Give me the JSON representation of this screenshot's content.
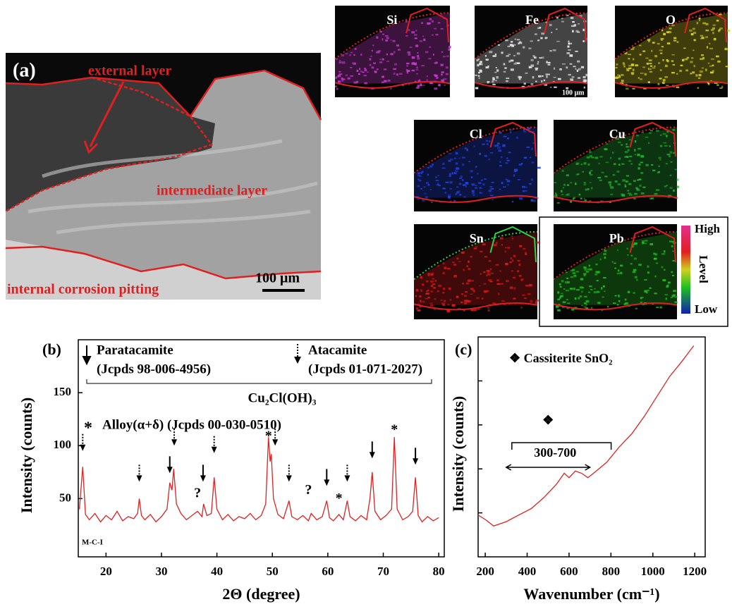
{
  "panel_a": {
    "label": "(a)",
    "external": "external layer",
    "intermediate": "intermediate layer",
    "internal": "internal corrosion pitting",
    "scale": "100 μm"
  },
  "maps": {
    "items": [
      {
        "label": "Si",
        "color": "#c838d0",
        "outline": "#e02020"
      },
      {
        "label": "Fe",
        "color": "#e8e8e8",
        "outline": "#e02020"
      },
      {
        "label": "O",
        "color": "#d8d020",
        "outline": "#e02020"
      },
      {
        "label": "Cl",
        "color": "#2040e0",
        "outline": "#e02020"
      },
      {
        "label": "Cu",
        "color": "#20b030",
        "outline": "#e02020"
      },
      {
        "label": "Sn",
        "color": "#e01818",
        "outline": "#30d040"
      },
      {
        "label": "Pb",
        "color": "#20c020",
        "outline": "#e02020"
      }
    ],
    "scale": "100 μm",
    "legend": {
      "high": "High",
      "level": "Level",
      "low": "Low"
    }
  },
  "chart_data": [
    {
      "type": "line",
      "panel": "(b)",
      "xlabel": "2Θ (degree)",
      "ylabel": "Intensity (counts)",
      "color": "#e02020",
      "sample": "M-C-I",
      "legend": {
        "para": "Paratacamite",
        "para_ref": "(Jcpds 98-006-4956)",
        "ata": "Atacamite",
        "ata_ref": "(Jcpds 01-071-2027)",
        "formula": "Cu₂Cl(OH)₃",
        "alloy_symbol": "*",
        "alloy": "Alloy(α+δ) (Jcpds 00-030-0510)"
      },
      "x": [
        15.2,
        15.8,
        16.3,
        17,
        18,
        19,
        20,
        21,
        22,
        23,
        24,
        25,
        25.7,
        26,
        26.4,
        27,
        28,
        29,
        30,
        31,
        31.5,
        31.9,
        32.2,
        32.7,
        33.5,
        34.5,
        35.5,
        36.5,
        37.3,
        37.6,
        38.2,
        39,
        39.5,
        40,
        41,
        42,
        43,
        44,
        45,
        46,
        47,
        48,
        48.8,
        49.3,
        49.6,
        49.8,
        50.2,
        51,
        52,
        53,
        53.5,
        54.5,
        55.5,
        56.5,
        57,
        58,
        59,
        59.8,
        60.3,
        61,
        62,
        62.8,
        63.5,
        64,
        65,
        66,
        67,
        67.6,
        68,
        68.5,
        69.5,
        70.5,
        71.5,
        72,
        72.5,
        73.5,
        74.5,
        75.3,
        75.8,
        76.3,
        77,
        78,
        79,
        80
      ],
      "values": [
        40,
        80,
        35,
        30,
        36,
        28,
        34,
        30,
        38,
        29,
        33,
        31,
        36,
        50,
        34,
        30,
        35,
        28,
        33,
        40,
        65,
        58,
        78,
        45,
        36,
        30,
        34,
        38,
        33,
        45,
        34,
        36,
        70,
        40,
        30,
        35,
        29,
        33,
        31,
        36,
        30,
        34,
        45,
        108,
        85,
        92,
        50,
        35,
        31,
        48,
        33,
        30,
        34,
        29,
        36,
        30,
        33,
        48,
        32,
        29,
        35,
        30,
        48,
        33,
        29,
        34,
        30,
        50,
        75,
        38,
        30,
        34,
        40,
        108,
        40,
        30,
        33,
        38,
        70,
        34,
        28,
        33,
        29,
        32
      ],
      "xlim": [
        15,
        81
      ],
      "ylim": [
        -5,
        200
      ],
      "xticks": [
        20,
        30,
        40,
        50,
        60,
        70,
        80
      ],
      "yticks": [
        50,
        100,
        150
      ],
      "ytick_labels": true,
      "paratacamite_peaks": {
        "x": [
          31.5,
          37.5,
          59.8,
          68,
          75.8
        ],
        "y": [
          74,
          66,
          62,
          88,
          82
        ]
      },
      "atacamite_peaks": {
        "x": [
          15.8,
          26,
          32.3,
          39.5,
          50.5,
          53,
          63.5
        ],
        "y": [
          95,
          66,
          100,
          93,
          100,
          66,
          66
        ]
      },
      "alloy_peaks": {
        "label": "*",
        "x": [
          49.3,
          62,
          72
        ],
        "y": [
          107,
          48,
          113
        ]
      },
      "unknown_peaks": {
        "label": "?",
        "x": [
          36.5,
          56.5
        ],
        "y": [
          53,
          56
        ]
      }
    },
    {
      "type": "line",
      "panel": "(c)",
      "xlabel": "Wavenumber (cm⁻¹)",
      "ylabel": "Intensity (counts)",
      "color": "#e02020",
      "legend": "❖ Cassiterite SnO₂",
      "x": [
        166,
        200,
        240,
        300,
        360,
        420,
        480,
        540,
        577,
        600,
        630,
        660,
        690,
        730,
        780,
        840,
        900,
        960,
        1020,
        1080,
        1140,
        1195
      ],
      "values": [
        19,
        17,
        14,
        16,
        19,
        22,
        27,
        33,
        38,
        36,
        39,
        38,
        36,
        39,
        43,
        50,
        56,
        64,
        73,
        82,
        89,
        96
      ],
      "xlim": [
        166,
        1250
      ],
      "ylim": [
        0,
        100
      ],
      "xticks": [
        200,
        400,
        600,
        800,
        1000,
        1200
      ],
      "yticks": [
        20,
        40,
        60,
        80
      ],
      "ytick_labels": false,
      "band": {
        "symbol": "❖",
        "label": "300-700",
        "range": [
          300,
          700
        ]
      }
    }
  ]
}
